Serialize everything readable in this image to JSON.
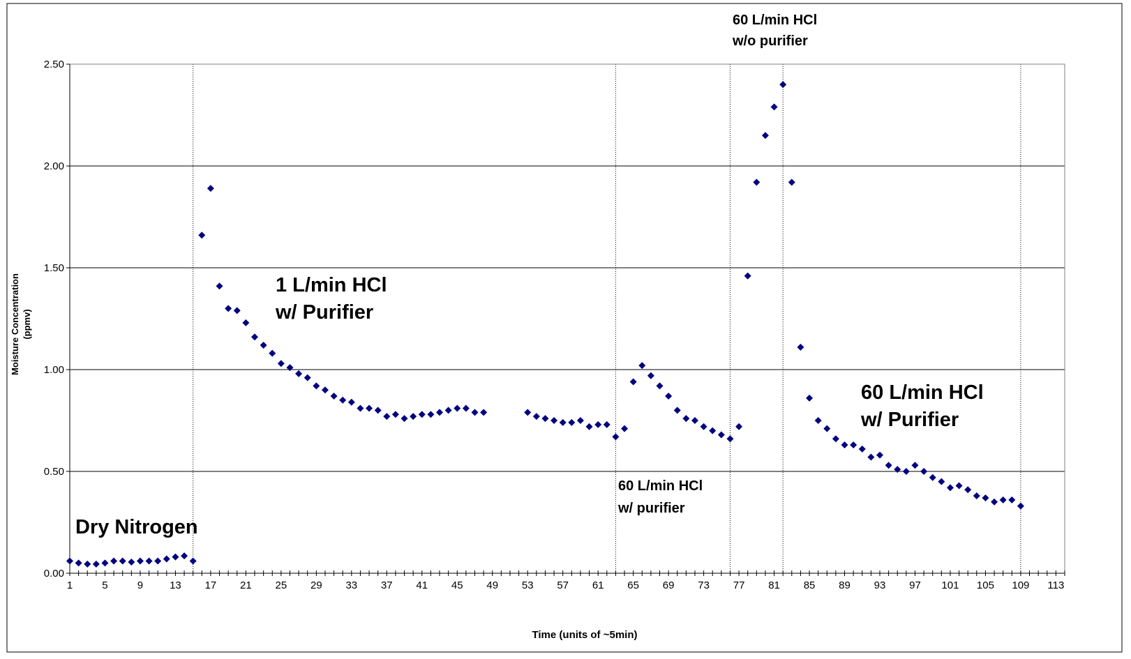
{
  "chart_data": {
    "type": "scatter",
    "title": "",
    "xlabel": "Time (units of ~5min)",
    "ylabel_lines": [
      "Moisture Concentration",
      "(ppmv)"
    ],
    "xlim": [
      1,
      114
    ],
    "ylim": [
      0,
      2.5
    ],
    "x_ticks": [
      1,
      5,
      9,
      13,
      17,
      21,
      25,
      29,
      33,
      37,
      41,
      45,
      49,
      53,
      57,
      61,
      65,
      69,
      73,
      77,
      81,
      85,
      89,
      93,
      97,
      101,
      105,
      109,
      113
    ],
    "y_ticks": [
      "0.00",
      "0.50",
      "1.00",
      "1.50",
      "2.00",
      "2.50"
    ],
    "grid": "horizontal",
    "marker_color": "#000080",
    "vlines": [
      15,
      63,
      76,
      82,
      109
    ],
    "annotations": [
      {
        "lines": [
          "Dry Nitrogen"
        ],
        "size": "large"
      },
      {
        "lines": [
          "1 L/min HCl",
          "w/ Purifier"
        ],
        "size": "large"
      },
      {
        "lines": [
          "60 L/min HCl",
          "w/ purifier"
        ],
        "size": "small"
      },
      {
        "lines": [
          "60 L/min HCl",
          "w/o purifier"
        ],
        "size": "small"
      },
      {
        "lines": [
          "60 L/min HCl",
          "w/ Purifier"
        ],
        "size": "large"
      }
    ],
    "series": [
      {
        "points": [
          [
            1,
            0.06
          ],
          [
            2,
            0.05
          ],
          [
            3,
            0.045
          ],
          [
            4,
            0.045
          ],
          [
            5,
            0.05
          ],
          [
            6,
            0.06
          ],
          [
            7,
            0.06
          ],
          [
            8,
            0.055
          ],
          [
            9,
            0.06
          ],
          [
            10,
            0.06
          ],
          [
            11,
            0.06
          ],
          [
            12,
            0.07
          ],
          [
            13,
            0.08
          ],
          [
            14,
            0.085
          ],
          [
            15,
            0.06
          ],
          [
            16,
            1.66
          ],
          [
            17,
            1.89
          ],
          [
            18,
            1.41
          ],
          [
            19,
            1.3
          ],
          [
            20,
            1.29
          ],
          [
            21,
            1.23
          ],
          [
            22,
            1.16
          ],
          [
            23,
            1.12
          ],
          [
            24,
            1.08
          ],
          [
            25,
            1.03
          ],
          [
            26,
            1.01
          ],
          [
            27,
            0.98
          ],
          [
            28,
            0.96
          ],
          [
            29,
            0.92
          ],
          [
            30,
            0.9
          ],
          [
            31,
            0.87
          ],
          [
            32,
            0.85
          ],
          [
            33,
            0.84
          ],
          [
            34,
            0.81
          ],
          [
            35,
            0.81
          ],
          [
            36,
            0.8
          ],
          [
            37,
            0.77
          ],
          [
            38,
            0.78
          ],
          [
            39,
            0.76
          ],
          [
            40,
            0.77
          ],
          [
            41,
            0.78
          ],
          [
            42,
            0.78
          ],
          [
            43,
            0.79
          ],
          [
            44,
            0.8
          ],
          [
            45,
            0.81
          ],
          [
            46,
            0.81
          ],
          [
            47,
            0.79
          ],
          [
            48,
            0.79
          ],
          [
            53,
            0.79
          ],
          [
            54,
            0.77
          ],
          [
            55,
            0.76
          ],
          [
            56,
            0.75
          ],
          [
            57,
            0.74
          ],
          [
            58,
            0.74
          ],
          [
            59,
            0.75
          ],
          [
            60,
            0.72
          ],
          [
            61,
            0.73
          ],
          [
            62,
            0.73
          ],
          [
            63,
            0.67
          ],
          [
            64,
            0.71
          ],
          [
            65,
            0.94
          ],
          [
            66,
            1.02
          ],
          [
            67,
            0.97
          ],
          [
            68,
            0.92
          ],
          [
            69,
            0.87
          ],
          [
            70,
            0.8
          ],
          [
            71,
            0.76
          ],
          [
            72,
            0.75
          ],
          [
            73,
            0.72
          ],
          [
            74,
            0.7
          ],
          [
            75,
            0.68
          ],
          [
            76,
            0.66
          ],
          [
            77,
            0.72
          ],
          [
            78,
            1.46
          ],
          [
            79,
            1.92
          ],
          [
            80,
            2.15
          ],
          [
            81,
            2.29
          ],
          [
            82,
            2.4
          ],
          [
            83,
            1.92
          ],
          [
            84,
            1.11
          ],
          [
            85,
            0.86
          ],
          [
            86,
            0.75
          ],
          [
            87,
            0.71
          ],
          [
            88,
            0.66
          ],
          [
            89,
            0.63
          ],
          [
            90,
            0.63
          ],
          [
            91,
            0.61
          ],
          [
            92,
            0.57
          ],
          [
            93,
            0.58
          ],
          [
            94,
            0.53
          ],
          [
            95,
            0.51
          ],
          [
            96,
            0.5
          ],
          [
            97,
            0.53
          ],
          [
            98,
            0.5
          ],
          [
            99,
            0.47
          ],
          [
            100,
            0.45
          ],
          [
            101,
            0.42
          ],
          [
            102,
            0.43
          ],
          [
            103,
            0.41
          ],
          [
            104,
            0.38
          ],
          [
            105,
            0.37
          ],
          [
            106,
            0.35
          ],
          [
            107,
            0.36
          ],
          [
            108,
            0.36
          ],
          [
            109,
            0.33
          ]
        ]
      }
    ]
  }
}
